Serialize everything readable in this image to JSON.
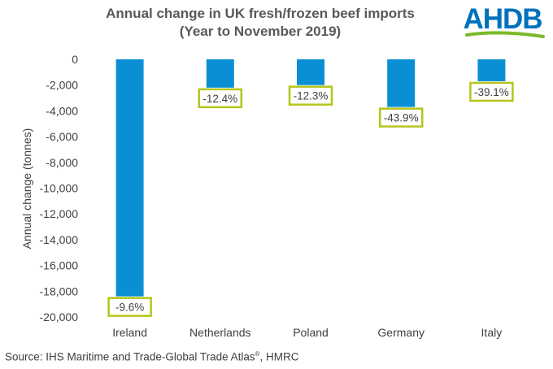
{
  "chart_data": {
    "type": "bar",
    "title_line1": "Annual change in UK fresh/frozen beef imports",
    "title_line2": "(Year to November 2019)",
    "ylabel": "Annual change (tonnes)",
    "xlabel": "",
    "categories": [
      "Ireland",
      "Netherlands",
      "Poland",
      "Germany",
      "Italy"
    ],
    "values": [
      -18400,
      -2200,
      -2000,
      -3700,
      -1700
    ],
    "data_labels": [
      "-9.6%",
      "-12.4%",
      "-12.3%",
      "-43.9%",
      "-39.1%"
    ],
    "ylim": [
      -20000,
      0
    ],
    "yticks": [
      0,
      -2000,
      -4000,
      -6000,
      -8000,
      -10000,
      -12000,
      -14000,
      -16000,
      -18000,
      -20000
    ],
    "ytick_labels": [
      "0",
      "-2,000",
      "-4,000",
      "-6,000",
      "-8,000",
      "-10,000",
      "-12,000",
      "-14,000",
      "-16,000",
      "-18,000",
      "-20,000"
    ],
    "grid": false
  },
  "logo_text": "AHDB",
  "source": "Source: IHS Maritime and Trade-Global Trade Atlas",
  "source_mark": "®",
  "source_suffix": ", HMRC",
  "colors": {
    "bar": "#0A8FD5",
    "label_border": "#B5C51A",
    "text": "#404040",
    "title": "#595959",
    "brand": "#0072BC"
  }
}
